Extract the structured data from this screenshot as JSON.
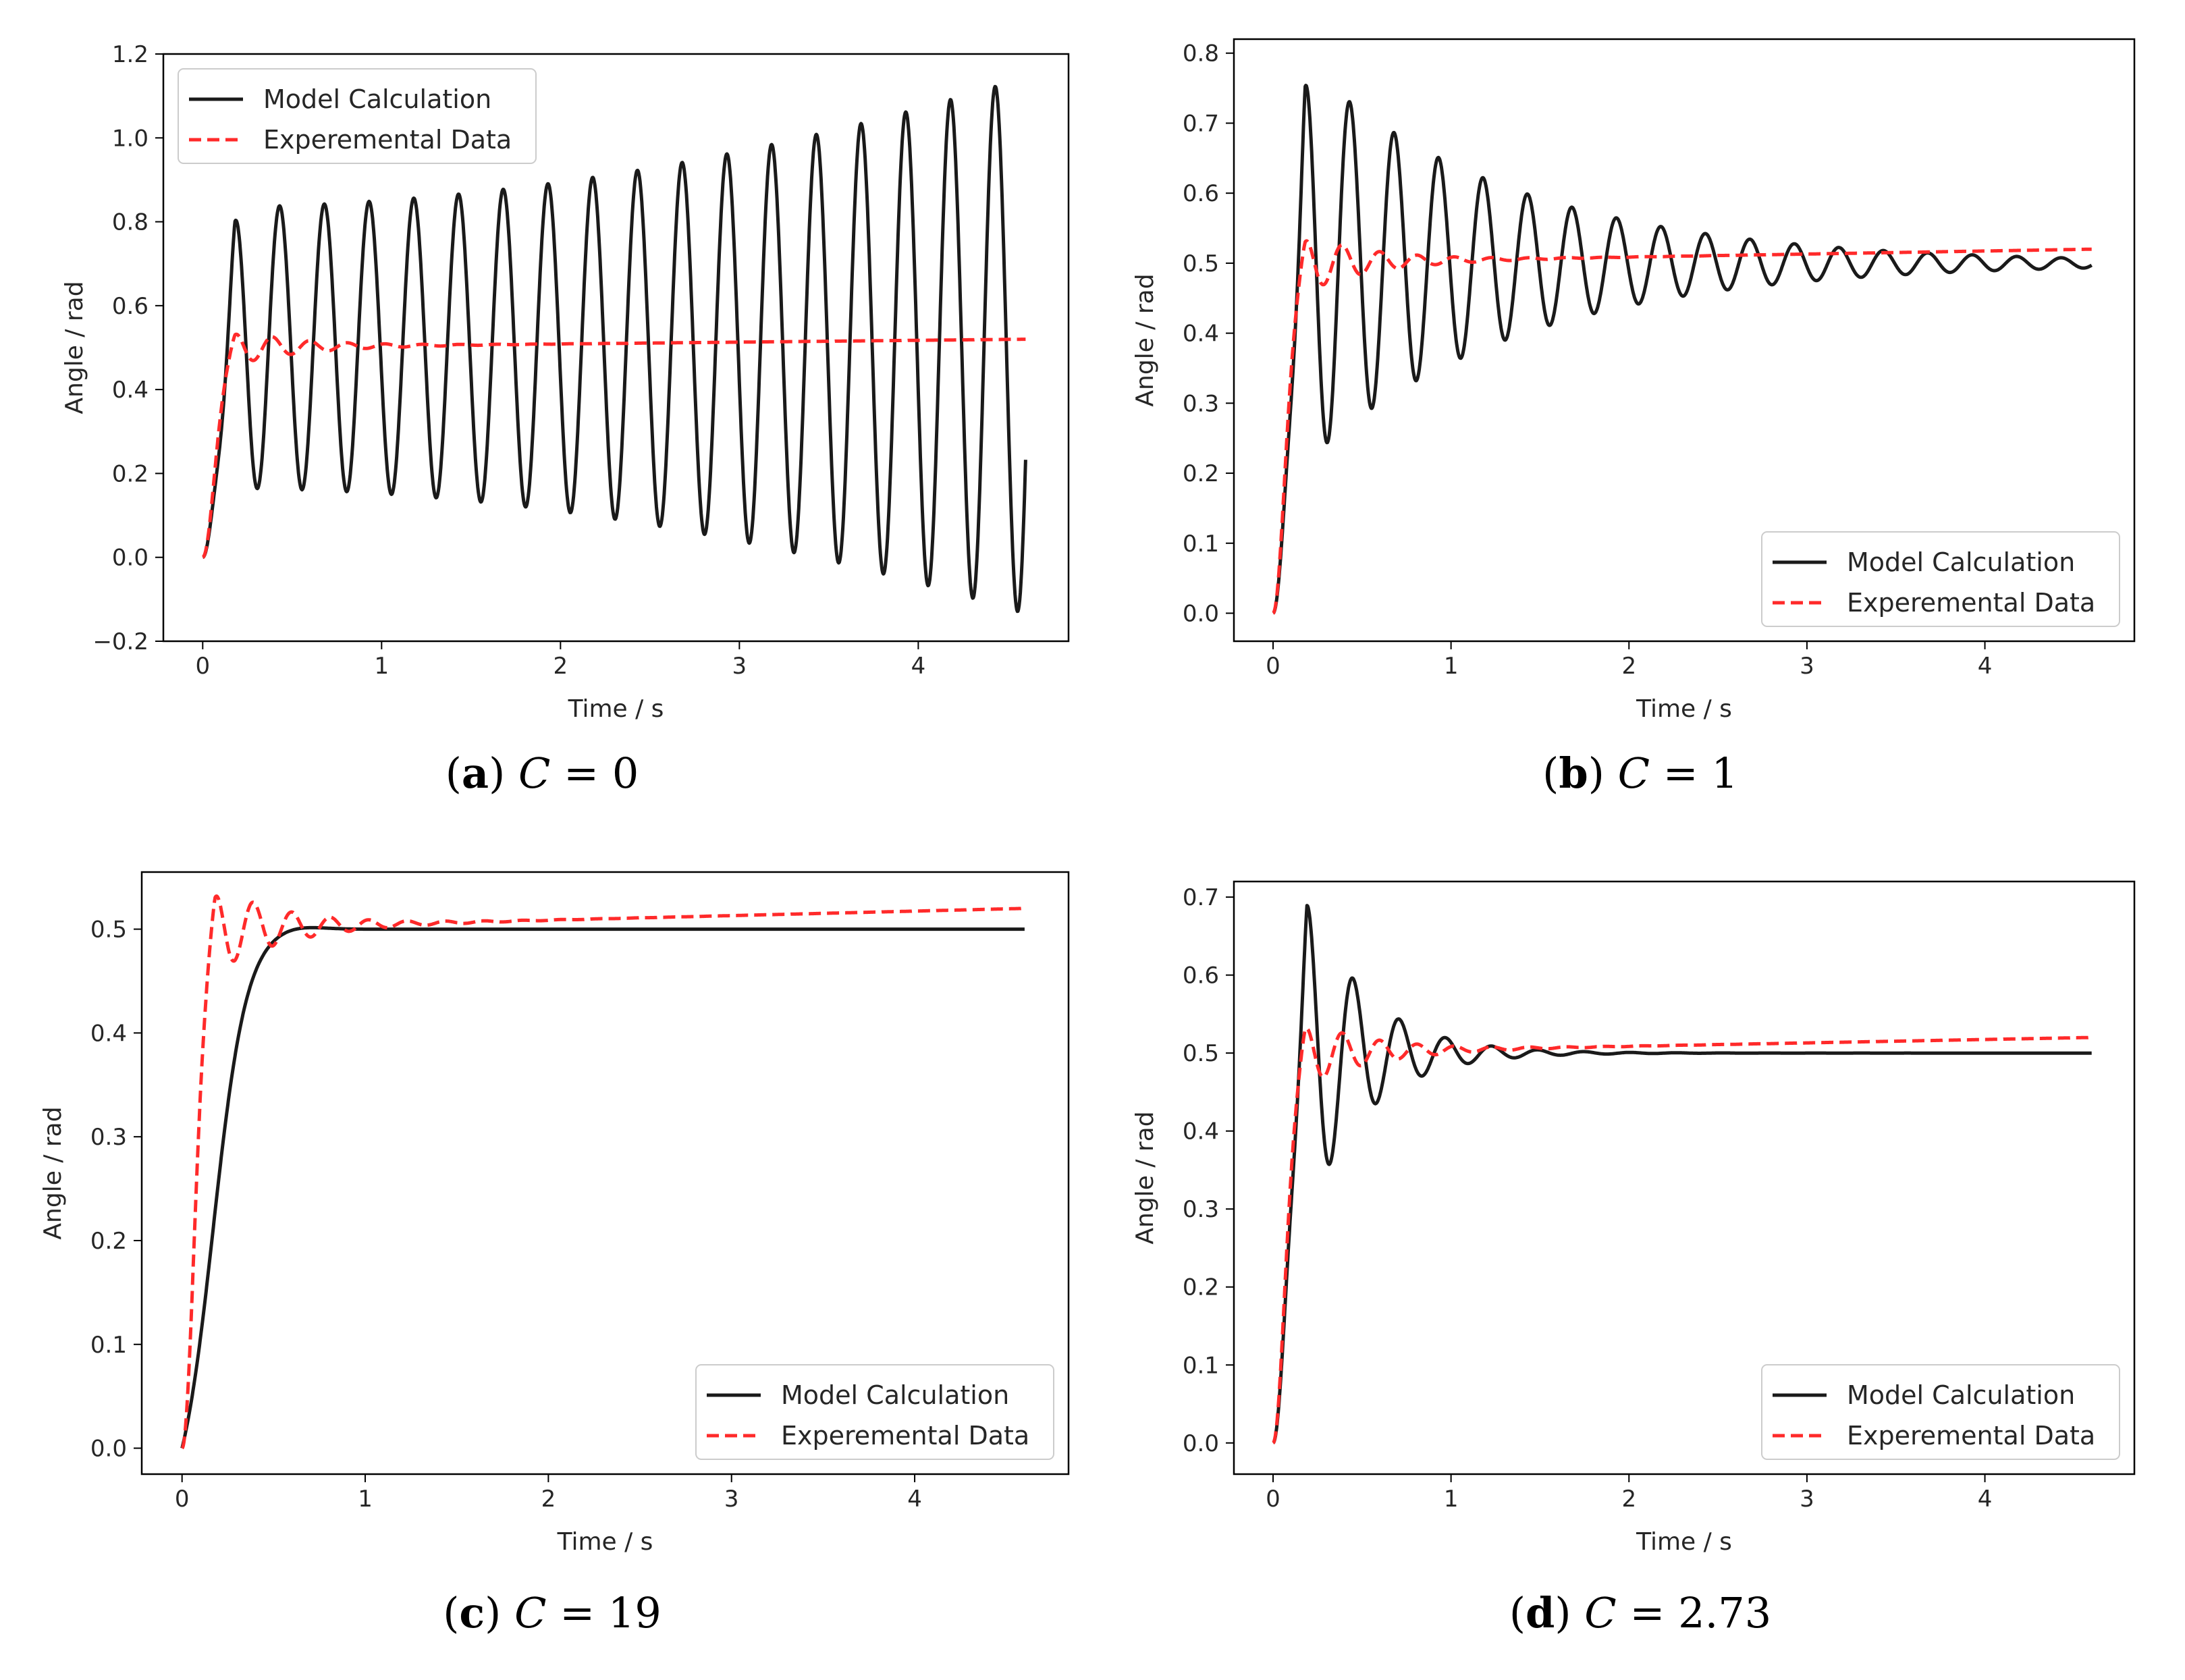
{
  "figure": {
    "colors": {
      "model": "#1a1a1a",
      "experimental": "#ff2a2a",
      "axes": "#000000"
    }
  },
  "chart_data": [
    {
      "id": "a",
      "type": "line",
      "caption": {
        "letter": "a",
        "variable": "C",
        "equals": "=",
        "value": "0"
      },
      "xlabel": "Time / s",
      "ylabel": "Angle / rad",
      "xlim": [
        -0.22,
        4.84
      ],
      "ylim": [
        -0.2,
        1.2
      ],
      "xticks": [
        0,
        1,
        2,
        3,
        4
      ],
      "xtick_labels": [
        "0",
        "1",
        "2",
        "3",
        "4"
      ],
      "yticks": [
        -0.2,
        0.0,
        0.2,
        0.4,
        0.6,
        0.8,
        1.0,
        1.2
      ],
      "ytick_labels": [
        "−0.2",
        "0.0",
        "0.2",
        "0.4",
        "0.6",
        "0.8",
        "1.0",
        "1.2"
      ],
      "legend": {
        "placement": "upper-left",
        "entries": [
          "Model Calculation",
          "Experemental Data"
        ]
      },
      "series": [
        {
          "name": "Model Calculation",
          "style": "solid",
          "model": {
            "kind": "undamped",
            "rise_tau": 0.06,
            "center_start": 0.5,
            "center_end": 0.505,
            "amp_start": 0.335,
            "amp_end": 0.64,
            "period": 0.25,
            "first_peak": 0.18,
            "t_end": 4.6
          }
        },
        {
          "name": "Experemental Data",
          "style": "dashed",
          "model": {
            "kind": "damped",
            "rise_tau": 0.055,
            "final_start": 0.5,
            "final_end": 0.52,
            "amp": 0.042,
            "decay": 0.38,
            "period": 0.21,
            "first_peak": 0.18,
            "t_end": 4.6
          }
        }
      ]
    },
    {
      "id": "b",
      "type": "line",
      "caption": {
        "letter": "b",
        "variable": "C",
        "equals": "=",
        "value": "1"
      },
      "xlabel": "Time / s",
      "ylabel": "Angle / rad",
      "xlim": [
        -0.22,
        4.84
      ],
      "ylim": [
        -0.04,
        0.82
      ],
      "xticks": [
        0,
        1,
        2,
        3,
        4
      ],
      "xtick_labels": [
        "0",
        "1",
        "2",
        "3",
        "4"
      ],
      "yticks": [
        0.0,
        0.1,
        0.2,
        0.3,
        0.4,
        0.5,
        0.6,
        0.7,
        0.8
      ],
      "ytick_labels": [
        "0.0",
        "0.1",
        "0.2",
        "0.3",
        "0.4",
        "0.5",
        "0.6",
        "0.7",
        "0.8"
      ],
      "legend": {
        "placement": "lower-right",
        "entries": [
          "Model Calculation",
          "Experemental Data"
        ]
      },
      "series": [
        {
          "name": "Model Calculation",
          "style": "solid",
          "model": {
            "kind": "damped",
            "rise_tau": 0.06,
            "final_start": 0.5,
            "final_end": 0.5,
            "amp": 0.285,
            "decay": 1.18,
            "period": 0.25,
            "first_peak": 0.18,
            "t_end": 4.6
          }
        },
        {
          "name": "Experemental Data",
          "style": "dashed",
          "model": {
            "kind": "damped",
            "rise_tau": 0.055,
            "final_start": 0.5,
            "final_end": 0.52,
            "amp": 0.042,
            "decay": 0.38,
            "period": 0.21,
            "first_peak": 0.18,
            "t_end": 4.6
          }
        }
      ]
    },
    {
      "id": "c",
      "type": "line",
      "caption": {
        "letter": "c",
        "variable": "C",
        "equals": "=",
        "value": "19"
      },
      "xlabel": "Time / s",
      "ylabel": "Angle / rad",
      "xlim": [
        -0.22,
        4.84
      ],
      "ylim": [
        -0.025,
        0.555
      ],
      "xticks": [
        0,
        1,
        2,
        3,
        4
      ],
      "xtick_labels": [
        "0",
        "1",
        "2",
        "3",
        "4"
      ],
      "yticks": [
        0.0,
        0.1,
        0.2,
        0.3,
        0.4,
        0.5
      ],
      "ytick_labels": [
        "0.0",
        "0.1",
        "0.2",
        "0.3",
        "0.4",
        "0.5"
      ],
      "legend": {
        "placement": "lower-right",
        "entries": [
          "Model Calculation",
          "Experemental Data"
        ]
      },
      "series": [
        {
          "name": "Model Calculation",
          "style": "solid",
          "model": {
            "kind": "overdamped",
            "t0": 0.17,
            "k": 11,
            "final": 0.5,
            "bump": 0.004,
            "bump_t": 0.6,
            "t_end": 4.6
          }
        },
        {
          "name": "Experemental Data",
          "style": "dashed",
          "model": {
            "kind": "damped",
            "rise_tau": 0.055,
            "final_start": 0.5,
            "final_end": 0.52,
            "amp": 0.042,
            "decay": 0.38,
            "period": 0.21,
            "first_peak": 0.18,
            "t_end": 4.6
          }
        }
      ]
    },
    {
      "id": "d",
      "type": "line",
      "caption": {
        "letter": "d",
        "variable": "C",
        "equals": "=",
        "value": "2.73"
      },
      "xlabel": "Time / s",
      "ylabel": "Angle / rad",
      "xlim": [
        -0.22,
        4.84
      ],
      "ylim": [
        -0.04,
        0.72
      ],
      "xticks": [
        0,
        1,
        2,
        3,
        4
      ],
      "xtick_labels": [
        "0",
        "1",
        "2",
        "3",
        "4"
      ],
      "yticks": [
        0.0,
        0.1,
        0.2,
        0.3,
        0.4,
        0.5,
        0.6,
        0.7
      ],
      "ytick_labels": [
        "0.0",
        "0.1",
        "0.2",
        "0.3",
        "0.4",
        "0.5",
        "0.6",
        "0.7"
      ],
      "legend": {
        "placement": "lower-right",
        "entries": [
          "Model Calculation",
          "Experemental Data"
        ]
      },
      "series": [
        {
          "name": "Model Calculation",
          "style": "solid",
          "model": {
            "kind": "damped",
            "rise_tau": 0.06,
            "final_start": 0.5,
            "final_end": 0.5,
            "amp": 0.21,
            "decay": 0.33,
            "period": 0.26,
            "first_peak": 0.19,
            "t_end": 4.6
          }
        },
        {
          "name": "Experemental Data",
          "style": "dashed",
          "model": {
            "kind": "damped",
            "rise_tau": 0.055,
            "final_start": 0.5,
            "final_end": 0.52,
            "amp": 0.042,
            "decay": 0.38,
            "period": 0.21,
            "first_peak": 0.18,
            "t_end": 4.6
          }
        }
      ]
    }
  ]
}
